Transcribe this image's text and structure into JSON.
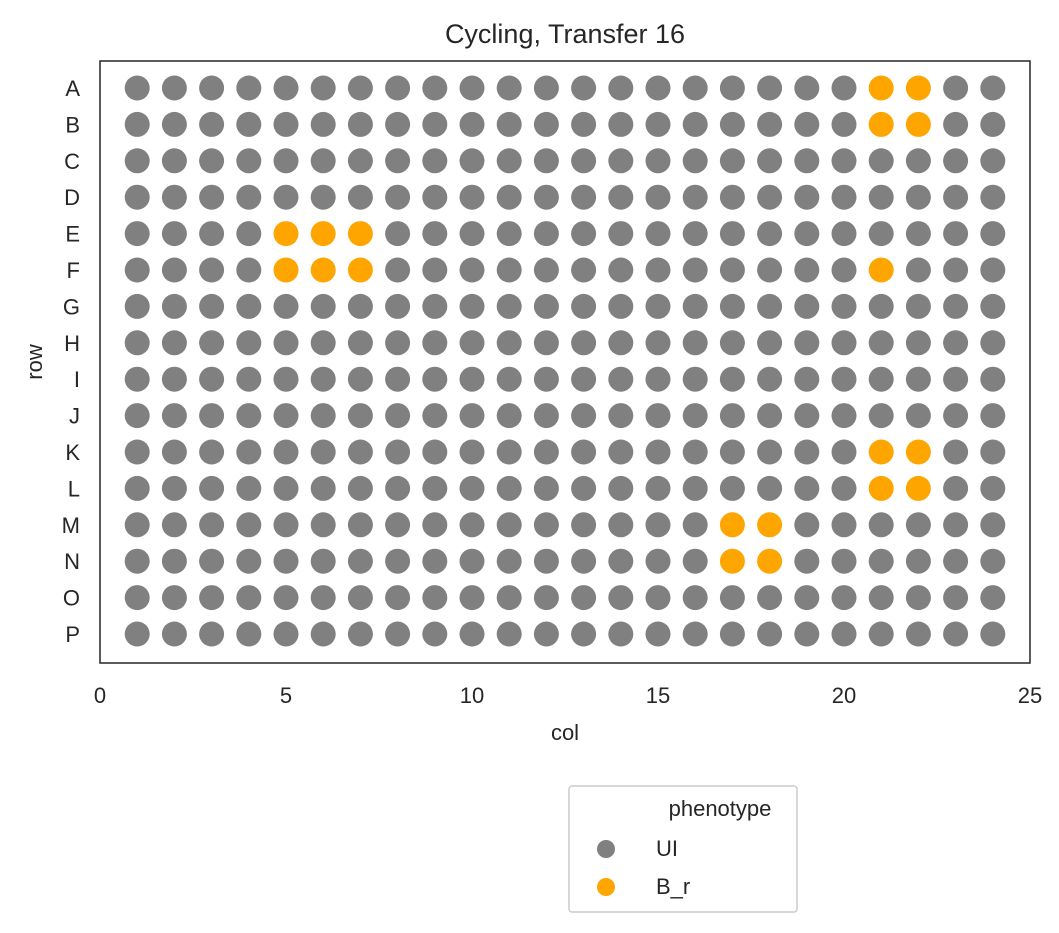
{
  "chart_data": {
    "type": "scatter",
    "title": "Cycling, Transfer 16",
    "xlabel": "col",
    "ylabel": "row",
    "xlim": [
      0,
      25
    ],
    "xticks": [
      0,
      5,
      10,
      15,
      20,
      25
    ],
    "rows": [
      "A",
      "B",
      "C",
      "D",
      "E",
      "F",
      "G",
      "H",
      "I",
      "J",
      "K",
      "L",
      "M",
      "N",
      "O",
      "P"
    ],
    "columns": [
      1,
      2,
      3,
      4,
      5,
      6,
      7,
      8,
      9,
      10,
      11,
      12,
      13,
      14,
      15,
      16,
      17,
      18,
      19,
      20,
      21,
      22,
      23,
      24
    ],
    "grid": false,
    "legend": {
      "title": "phenotype",
      "placement": "below-center",
      "entries": [
        {
          "name": "UI",
          "color": "#808080"
        },
        {
          "name": "B_r",
          "color": "#FFA500"
        }
      ]
    },
    "default_phenotype": "UI",
    "series": [
      {
        "name": "B_r",
        "color": "#FFA500",
        "points": [
          {
            "row": "A",
            "col": 21
          },
          {
            "row": "A",
            "col": 22
          },
          {
            "row": "B",
            "col": 21
          },
          {
            "row": "B",
            "col": 22
          },
          {
            "row": "E",
            "col": 5
          },
          {
            "row": "E",
            "col": 6
          },
          {
            "row": "E",
            "col": 7
          },
          {
            "row": "F",
            "col": 5
          },
          {
            "row": "F",
            "col": 6
          },
          {
            "row": "F",
            "col": 7
          },
          {
            "row": "F",
            "col": 21
          },
          {
            "row": "K",
            "col": 21
          },
          {
            "row": "K",
            "col": 22
          },
          {
            "row": "L",
            "col": 21
          },
          {
            "row": "L",
            "col": 22
          },
          {
            "row": "M",
            "col": 17
          },
          {
            "row": "M",
            "col": 18
          },
          {
            "row": "N",
            "col": 17
          },
          {
            "row": "N",
            "col": 18
          }
        ]
      }
    ]
  }
}
